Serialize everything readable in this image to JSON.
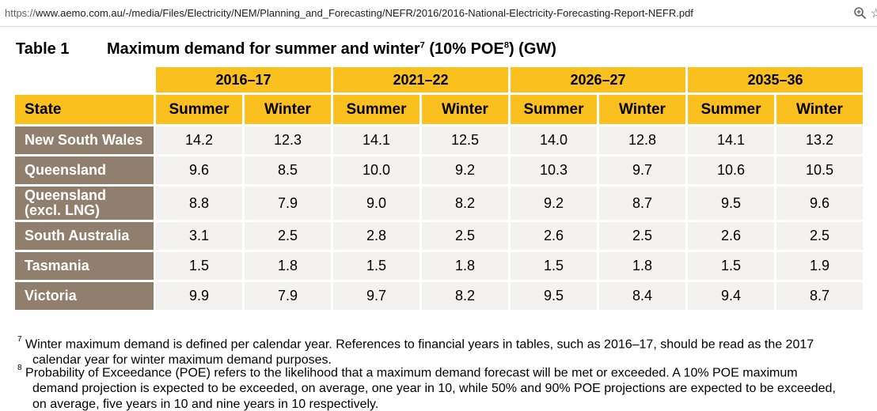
{
  "browser": {
    "url_scheme": "https://",
    "url_rest": "www.aemo.com.au/-/media/Files/Electricity/NEM/Planning_and_Forecasting/NEFR/2016/2016-National-Electricity-Forecasting-Report-NEFR.pdf",
    "zoom_icon": "magnifier-zoom-icon",
    "bookmark_icon": "star-icon"
  },
  "table": {
    "caption_label": "Table 1",
    "title": "Maximum demand for summer and winter",
    "title_sup1": "7",
    "title_mid": " (10% POE",
    "title_sup2": "8",
    "title_end": ") (GW)",
    "years": [
      "2016–17",
      "2021–22",
      "2026–27",
      "2035–36"
    ],
    "state_header": "State",
    "season_headers": [
      "Summer",
      "Winter",
      "Summer",
      "Winter",
      "Summer",
      "Winter",
      "Summer",
      "Winter"
    ],
    "rows": [
      {
        "state_line1": "New South Wales",
        "state_line2": "",
        "values": [
          "14.2",
          "12.3",
          "14.1",
          "12.5",
          "14.0",
          "12.8",
          "14.1",
          "13.2"
        ]
      },
      {
        "state_line1": "Queensland",
        "state_line2": "",
        "values": [
          "9.6",
          "8.5",
          "10.0",
          "9.2",
          "10.3",
          "9.7",
          "10.6",
          "10.5"
        ]
      },
      {
        "state_line1": "Queensland",
        "state_line2": "(excl. LNG)",
        "values": [
          "8.8",
          "7.9",
          "9.0",
          "8.2",
          "9.2",
          "8.7",
          "9.5",
          "9.6"
        ]
      },
      {
        "state_line1": "South Australia",
        "state_line2": "",
        "values": [
          "3.1",
          "2.5",
          "2.8",
          "2.5",
          "2.6",
          "2.5",
          "2.6",
          "2.5"
        ]
      },
      {
        "state_line1": "Tasmania",
        "state_line2": "",
        "values": [
          "1.5",
          "1.8",
          "1.5",
          "1.8",
          "1.5",
          "1.8",
          "1.5",
          "1.9"
        ]
      },
      {
        "state_line1": "Victoria",
        "state_line2": "",
        "values": [
          "9.9",
          "7.9",
          "9.7",
          "8.2",
          "9.5",
          "8.4",
          "9.4",
          "8.7"
        ]
      }
    ]
  },
  "footnotes": [
    {
      "mark": "7",
      "line1": "Winter maximum demand is defined per calendar year. References to financial years in tables, such as 2016–17, should be read as the 2017",
      "line2": "calendar year for winter maximum demand purposes.",
      "line3": ""
    },
    {
      "mark": "8",
      "line1": "Probability of Exceedance (POE) refers to the likelihood that a maximum demand forecast will be met or exceeded. A 10% POE maximum",
      "line2": "demand projection is expected to be exceeded, on average, one year in 10, while 50% and 90% POE projections are expected to be exceeded,",
      "line3": "on average, five years in 10 and nine years in 10 respectively."
    }
  ],
  "colors": {
    "header_yellow": "#f9c01e",
    "state_brown": "#8f7f6c",
    "cell_grey": "#f3f2f1"
  }
}
